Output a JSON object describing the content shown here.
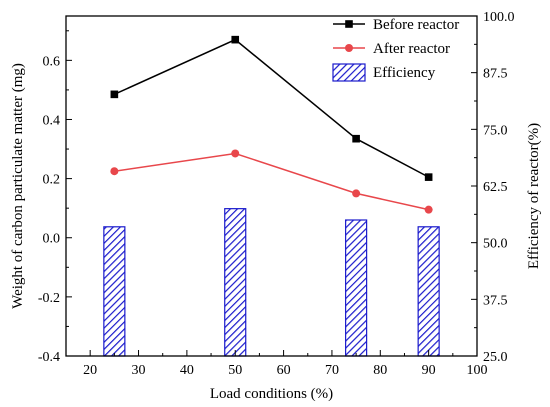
{
  "chart_data": {
    "type": "bar+line",
    "x_axis": {
      "label": "Load conditions (%)",
      "range": [
        15,
        100
      ],
      "ticks": [
        20,
        30,
        40,
        50,
        60,
        70,
        80,
        90,
        100
      ]
    },
    "y_left": {
      "label": "Weight of carbon particulate matter (mg)",
      "range": [
        -0.4,
        0.75
      ],
      "ticks": [
        -0.4,
        -0.2,
        0.0,
        0.2,
        0.4,
        0.6
      ],
      "tick_labels": [
        "-0.4",
        "-0.2",
        "0.0",
        "0.2",
        "0.4",
        "0.6"
      ]
    },
    "y_right": {
      "label": "Efficiency of reactor(%)",
      "range": [
        25,
        100
      ],
      "ticks": [
        25,
        37.5,
        50,
        62.5,
        75,
        87.5,
        100
      ],
      "tick_labels": [
        "25.0",
        "37.5",
        "50.0",
        "62.5",
        "75.0",
        "87.5",
        "100.0"
      ]
    },
    "x": [
      25,
      50,
      75,
      90
    ],
    "series": [
      {
        "name": "Before reactor",
        "kind": "line",
        "axis": "left",
        "color": "#000000",
        "marker": "square",
        "values": [
          0.485,
          0.67,
          0.335,
          0.205
        ]
      },
      {
        "name": "After reactor",
        "kind": "line",
        "axis": "left",
        "color": "#e8474b",
        "marker": "circle",
        "values": [
          0.225,
          0.285,
          0.15,
          0.095
        ]
      },
      {
        "name": "Efficiency",
        "kind": "bar",
        "axis": "right",
        "color": "#1a1acc",
        "pattern": "diagonal-hatch",
        "values": [
          53.5,
          57.5,
          55,
          53.5
        ]
      }
    ],
    "legend_position": "top-right",
    "grid": false
  }
}
